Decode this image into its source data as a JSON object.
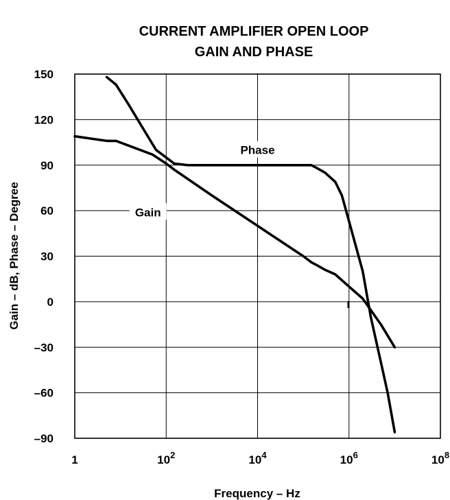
{
  "title_lines": [
    "CURRENT AMPLIFIER OPEN LOOP",
    "GAIN AND PHASE"
  ],
  "chart_data": {
    "type": "line",
    "title": "CURRENT AMPLIFIER OPEN LOOP GAIN AND PHASE",
    "xlabel": "Frequency – Hz",
    "ylabel": "Gain – dB, Phase – Degree",
    "xscale": "log",
    "xlim": [
      1,
      100000000
    ],
    "ylim": [
      -90,
      150
    ],
    "grid": true,
    "x_ticks": [
      {
        "base": "1",
        "exp": ""
      },
      {
        "base": "10",
        "exp": "2"
      },
      {
        "base": "10",
        "exp": "4"
      },
      {
        "base": "10",
        "exp": "6"
      },
      {
        "base": "10",
        "exp": "8"
      }
    ],
    "y_ticks": [
      "150",
      "120",
      "90",
      "60",
      "30",
      "0",
      "–30",
      "–60",
      "–90"
    ],
    "series": [
      {
        "name": "Phase",
        "x": [
          5,
          8,
          15,
          30,
          60,
          100,
          150,
          300,
          1000,
          10000,
          100000,
          150000,
          200000,
          300000,
          500000,
          700000,
          1000000,
          2000000,
          3000000,
          5000000,
          7000000,
          10000000
        ],
        "y": [
          148,
          143,
          130,
          115,
          100,
          95,
          91,
          90,
          90,
          90,
          90,
          90,
          88,
          85,
          79,
          70,
          53,
          20,
          -10,
          -40,
          -60,
          -86
        ]
      },
      {
        "name": "Gain",
        "x": [
          1,
          5,
          8,
          50,
          100,
          150,
          1000,
          10000,
          100000,
          150000,
          200000,
          300000,
          500000,
          1000000,
          2000000,
          5000000,
          10000000
        ],
        "y": [
          109,
          106,
          106,
          97,
          91,
          87,
          70,
          50,
          30,
          26,
          24,
          21,
          18,
          10,
          2,
          -15,
          -30
        ]
      }
    ],
    "annotations": [
      {
        "text": "Phase",
        "x": 10000,
        "y": 100
      },
      {
        "text": "Gain",
        "x": 40,
        "y": 59
      }
    ]
  }
}
